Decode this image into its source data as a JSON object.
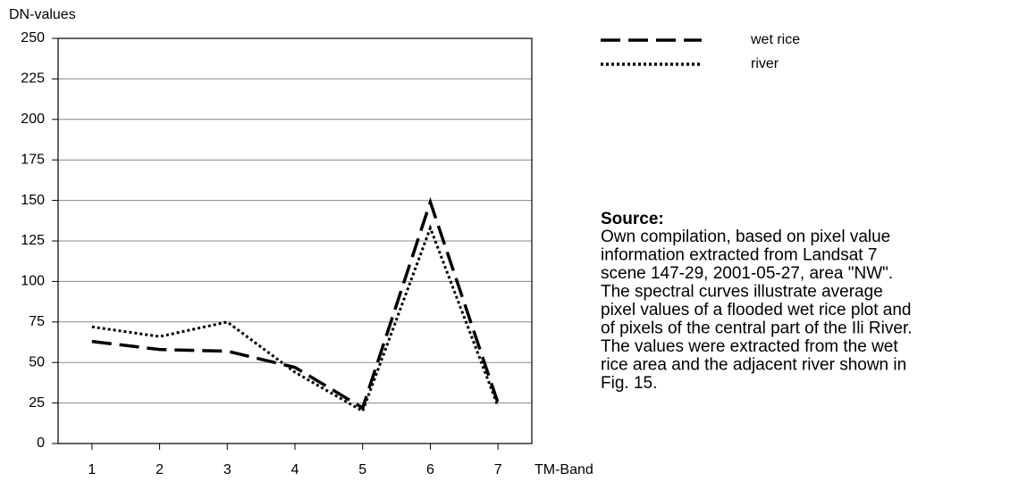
{
  "chart_data": {
    "type": "line",
    "ylabel": "DN-values",
    "xlabel": "TM-Band",
    "categories": [
      "1",
      "2",
      "3",
      "4",
      "5",
      "6",
      "7"
    ],
    "series": [
      {
        "name": "wet rice",
        "color": "#000000",
        "dash": "dashed",
        "values": [
          63,
          58,
          57,
          47,
          22,
          149,
          25
        ]
      },
      {
        "name": "river",
        "color": "#000000",
        "dash": "dotted",
        "values": [
          72,
          66,
          75,
          44,
          20,
          133,
          23
        ]
      }
    ],
    "ylim": [
      0,
      250
    ],
    "yticks": [
      0,
      25,
      50,
      75,
      100,
      125,
      150,
      175,
      200,
      225,
      250
    ],
    "grid": true,
    "annotation": {
      "heading": "Source:",
      "lines": [
        "Own compilation, based on pixel value",
        "information extracted from Landsat 7",
        "scene 147-29, 2001-05-27, area \"NW\".",
        "The spectral curves illustrate average",
        "pixel values of a flooded wet rice plot and",
        "of pixels of the central part of the Ili River.",
        "The values were extracted from the wet",
        "rice area and the adjacent river shown in",
        "Fig. 15."
      ]
    }
  }
}
